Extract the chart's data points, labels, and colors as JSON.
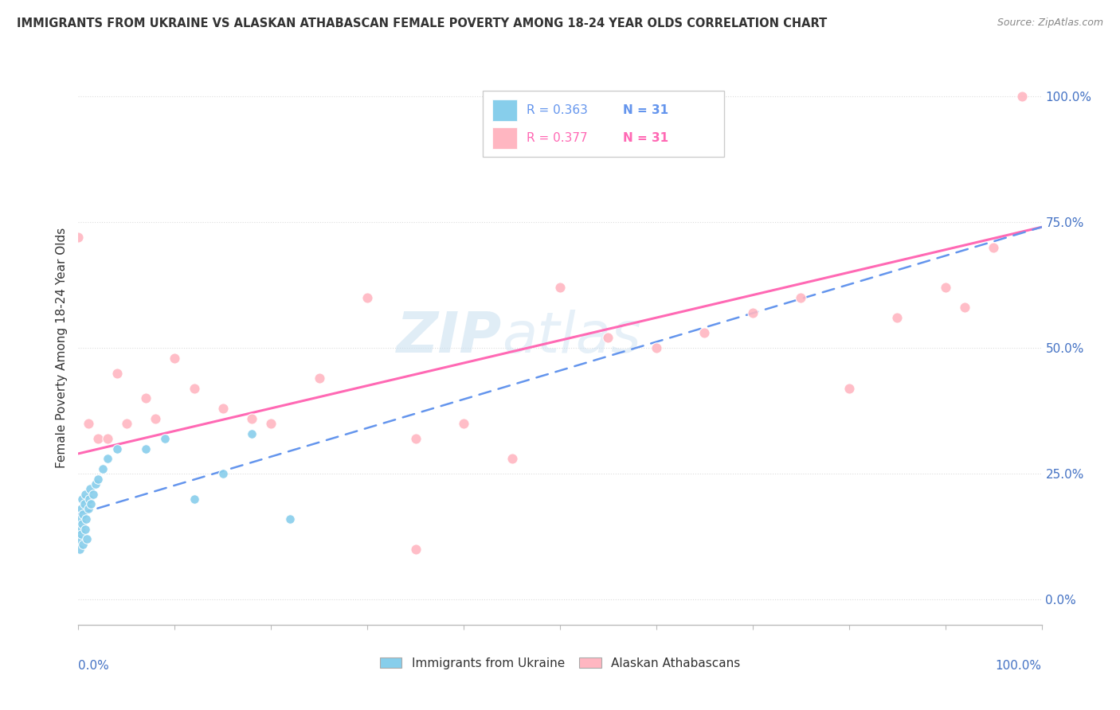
{
  "title": "IMMIGRANTS FROM UKRAINE VS ALASKAN ATHABASCAN FEMALE POVERTY AMONG 18-24 YEAR OLDS CORRELATION CHART",
  "source_text": "Source: ZipAtlas.com",
  "ylabel": "Female Poverty Among 18-24 Year Olds",
  "watermark_line1": "ZIP",
  "watermark_line2": "atlas",
  "ukraine_R": "R = 0.363",
  "ukraine_N": "N = 31",
  "athabascan_R": "R = 0.377",
  "athabascan_N": "N = 31",
  "ukraine_color": "#87CEEB",
  "athabascan_color": "#FFB6C1",
  "ukraine_line_color": "#6495ED",
  "athabascan_line_color": "#FF69B4",
  "background_color": "#ffffff",
  "grid_color": "#dddddd",
  "xlim": [
    0.0,
    1.0
  ],
  "ylim": [
    -0.05,
    1.05
  ],
  "ytick_labels": [
    "0.0%",
    "25.0%",
    "50.0%",
    "75.0%",
    "100.0%"
  ],
  "ytick_values": [
    0.0,
    0.25,
    0.5,
    0.75,
    1.0
  ],
  "legend_ukraine": "Immigrants from Ukraine",
  "legend_athabascan": "Alaskan Athabascans",
  "ukraine_scatter_x": [
    0.0,
    0.001,
    0.002,
    0.002,
    0.003,
    0.003,
    0.004,
    0.004,
    0.005,
    0.005,
    0.006,
    0.007,
    0.007,
    0.008,
    0.009,
    0.01,
    0.011,
    0.012,
    0.013,
    0.015,
    0.018,
    0.02,
    0.025,
    0.03,
    0.04,
    0.07,
    0.09,
    0.12,
    0.15,
    0.18,
    0.22
  ],
  "ukraine_scatter_y": [
    0.12,
    0.1,
    0.14,
    0.16,
    0.13,
    0.18,
    0.15,
    0.2,
    0.11,
    0.17,
    0.19,
    0.14,
    0.21,
    0.16,
    0.12,
    0.18,
    0.2,
    0.22,
    0.19,
    0.21,
    0.23,
    0.24,
    0.26,
    0.28,
    0.3,
    0.3,
    0.32,
    0.2,
    0.25,
    0.33,
    0.16
  ],
  "athabascan_scatter_x": [
    0.0,
    0.01,
    0.02,
    0.03,
    0.04,
    0.05,
    0.07,
    0.08,
    0.1,
    0.12,
    0.15,
    0.18,
    0.2,
    0.25,
    0.3,
    0.35,
    0.4,
    0.45,
    0.5,
    0.55,
    0.6,
    0.65,
    0.7,
    0.75,
    0.8,
    0.85,
    0.9,
    0.92,
    0.95,
    0.98,
    0.35
  ],
  "athabascan_scatter_y": [
    0.72,
    0.35,
    0.32,
    0.32,
    0.45,
    0.35,
    0.4,
    0.36,
    0.48,
    0.42,
    0.38,
    0.36,
    0.35,
    0.44,
    0.6,
    0.32,
    0.35,
    0.28,
    0.62,
    0.52,
    0.5,
    0.53,
    0.57,
    0.6,
    0.42,
    0.56,
    0.62,
    0.58,
    0.7,
    1.0,
    0.1
  ],
  "athabascan_line_start_y": 0.29,
  "athabascan_line_end_y": 0.74,
  "ukraine_line_start_y": 0.17,
  "ukraine_line_end_y": 0.74
}
